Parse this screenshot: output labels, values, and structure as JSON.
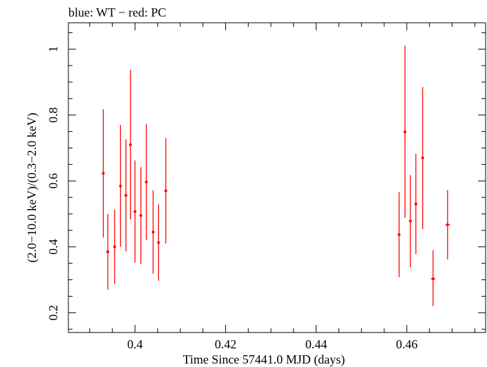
{
  "chart_data": {
    "type": "scatter",
    "title": "blue: WT − red: PC",
    "xlabel": "Time Since 57441.0 MJD (days)",
    "ylabel": "(2.0−10.0 keV)/(0.3−2.0 keV)",
    "xlim": [
      0.3853,
      0.4774
    ],
    "ylim": [
      0.14,
      1.08
    ],
    "x_ticks": [
      {
        "value": 0.4,
        "label": "0.4"
      },
      {
        "value": 0.42,
        "label": "0.42"
      },
      {
        "value": 0.44,
        "label": "0.44"
      },
      {
        "value": 0.46,
        "label": "0.46"
      }
    ],
    "y_ticks": [
      {
        "value": 0.2,
        "label": "0.2"
      },
      {
        "value": 0.4,
        "label": "0.4"
      },
      {
        "value": 0.6,
        "label": "0.6"
      },
      {
        "value": 0.8,
        "label": "0.8"
      },
      {
        "value": 1.0,
        "label": "1"
      }
    ],
    "grid": false,
    "series": [
      {
        "color": "#ff0000",
        "points": [
          {
            "x": 0.393,
            "xerr": 0.0003,
            "y": 0.623,
            "ylo": 0.428,
            "yhi": 0.818
          },
          {
            "x": 0.394,
            "xerr": 0.0003,
            "y": 0.385,
            "ylo": 0.27,
            "yhi": 0.5
          },
          {
            "x": 0.3955,
            "xerr": 0.0003,
            "y": 0.4,
            "ylo": 0.287,
            "yhi": 0.513
          },
          {
            "x": 0.3968,
            "xerr": 0.0003,
            "y": 0.585,
            "ylo": 0.4,
            "yhi": 0.77
          },
          {
            "x": 0.398,
            "xerr": 0.0003,
            "y": 0.556,
            "ylo": 0.386,
            "yhi": 0.726
          },
          {
            "x": 0.399,
            "xerr": 0.0003,
            "y": 0.71,
            "ylo": 0.483,
            "yhi": 0.937
          },
          {
            "x": 0.4,
            "xerr": 0.0003,
            "y": 0.507,
            "ylo": 0.352,
            "yhi": 0.662
          },
          {
            "x": 0.4013,
            "xerr": 0.0003,
            "y": 0.495,
            "ylo": 0.348,
            "yhi": 0.642
          },
          {
            "x": 0.4025,
            "xerr": 0.0003,
            "y": 0.597,
            "ylo": 0.42,
            "yhi": 0.773
          },
          {
            "x": 0.404,
            "xerr": 0.0003,
            "y": 0.445,
            "ylo": 0.318,
            "yhi": 0.572
          },
          {
            "x": 0.4052,
            "xerr": 0.0003,
            "y": 0.413,
            "ylo": 0.297,
            "yhi": 0.529
          },
          {
            "x": 0.4068,
            "xerr": 0.0003,
            "y": 0.57,
            "ylo": 0.41,
            "yhi": 0.73
          },
          {
            "x": 0.4583,
            "xerr": 0.0003,
            "y": 0.437,
            "ylo": 0.308,
            "yhi": 0.566
          },
          {
            "x": 0.4596,
            "xerr": 0.0003,
            "y": 0.749,
            "ylo": 0.488,
            "yhi": 1.01
          },
          {
            "x": 0.4608,
            "xerr": 0.0003,
            "y": 0.478,
            "ylo": 0.338,
            "yhi": 0.618
          },
          {
            "x": 0.462,
            "xerr": 0.0003,
            "y": 0.53,
            "ylo": 0.378,
            "yhi": 0.682
          },
          {
            "x": 0.4635,
            "xerr": 0.0003,
            "y": 0.67,
            "ylo": 0.454,
            "yhi": 0.885
          },
          {
            "x": 0.4658,
            "xerr": 0.0005,
            "y": 0.303,
            "ylo": 0.22,
            "yhi": 0.39
          },
          {
            "x": 0.469,
            "xerr": 0.0005,
            "y": 0.467,
            "ylo": 0.362,
            "yhi": 0.572
          }
        ]
      }
    ]
  }
}
